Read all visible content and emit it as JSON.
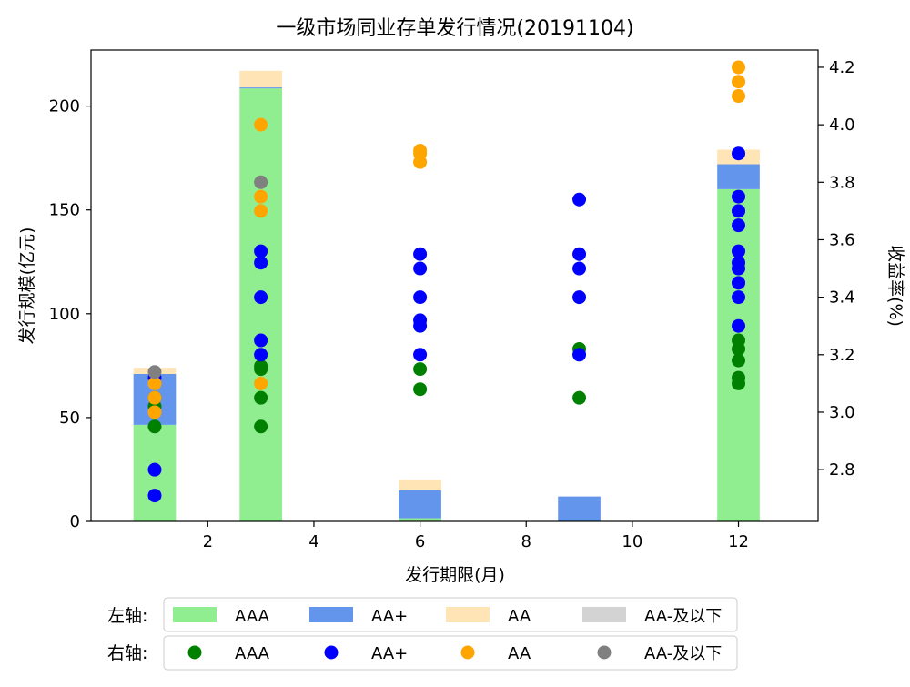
{
  "chart_data": {
    "type": "bar",
    "title": "一级市场同业存单发行情况(20191104)",
    "xlabel": "发行期限(月)",
    "ylabel_left": "发行规模(亿元)",
    "ylabel_right": "收益率(%)",
    "xlim": [
      -0.2,
      13.5
    ],
    "ylim_left": [
      0,
      227
    ],
    "ylim_right": [
      2.62,
      4.26
    ],
    "x_ticks": [
      2,
      4,
      6,
      8,
      10,
      12
    ],
    "y_ticks_left": [
      0,
      50,
      100,
      150,
      200
    ],
    "y_ticks_right": [
      2.8,
      3.0,
      3.2,
      3.4,
      3.6,
      3.8,
      4.0,
      4.2
    ],
    "grid": false,
    "bar_width": 0.8,
    "bar_series": [
      {
        "name": "AAA",
        "axis": "left",
        "color": "#90EE90",
        "x": [
          1,
          3,
          6,
          9,
          12
        ],
        "values": [
          46.5,
          208.5,
          1.5,
          0,
          160
        ]
      },
      {
        "name": "AA+",
        "axis": "left",
        "color": "#6495ED",
        "x": [
          1,
          3,
          6,
          9,
          12
        ],
        "values": [
          24.5,
          0.5,
          13.5,
          12,
          12
        ]
      },
      {
        "name": "AA",
        "axis": "left",
        "color": "#FFE4B5",
        "x": [
          1,
          3,
          6,
          9,
          12
        ],
        "values": [
          3,
          8,
          5,
          0,
          7
        ]
      },
      {
        "name": "AA-及以下",
        "axis": "left",
        "color": "#D3D3D3",
        "x": [
          1,
          3,
          6,
          9,
          12
        ],
        "values": [
          0,
          0,
          0,
          0,
          0
        ]
      }
    ],
    "scatter_series": [
      {
        "name": "AAA",
        "axis": "right",
        "color": "#008000",
        "points": [
          [
            1,
            2.95
          ],
          [
            1,
            3.02
          ],
          [
            1,
            3.05
          ],
          [
            3,
            2.95
          ],
          [
            3,
            3.05
          ],
          [
            3,
            3.15
          ],
          [
            3,
            3.16
          ],
          [
            6,
            3.08
          ],
          [
            6,
            3.15
          ],
          [
            9,
            3.05
          ],
          [
            9,
            3.22
          ],
          [
            12,
            3.1
          ],
          [
            12,
            3.12
          ],
          [
            12,
            3.18
          ],
          [
            12,
            3.22
          ],
          [
            12,
            3.25
          ]
        ]
      },
      {
        "name": "AA+",
        "axis": "right",
        "color": "#0000FF",
        "points": [
          [
            1,
            2.71
          ],
          [
            1,
            2.8
          ],
          [
            1,
            3.12
          ],
          [
            3,
            3.2
          ],
          [
            3,
            3.25
          ],
          [
            3,
            3.4
          ],
          [
            3,
            3.52
          ],
          [
            3,
            3.56
          ],
          [
            6,
            3.2
          ],
          [
            6,
            3.3
          ],
          [
            6,
            3.32
          ],
          [
            6,
            3.4
          ],
          [
            6,
            3.5
          ],
          [
            6,
            3.55
          ],
          [
            9,
            3.2
          ],
          [
            9,
            3.4
          ],
          [
            9,
            3.5
          ],
          [
            9,
            3.55
          ],
          [
            9,
            3.74
          ],
          [
            12,
            3.3
          ],
          [
            12,
            3.4
          ],
          [
            12,
            3.45
          ],
          [
            12,
            3.5
          ],
          [
            12,
            3.52
          ],
          [
            12,
            3.56
          ],
          [
            12,
            3.65
          ],
          [
            12,
            3.7
          ],
          [
            12,
            3.75
          ],
          [
            12,
            3.9
          ]
        ]
      },
      {
        "name": "AA",
        "axis": "right",
        "color": "#FFA500",
        "points": [
          [
            1,
            3.0
          ],
          [
            1,
            3.05
          ],
          [
            1,
            3.1
          ],
          [
            3,
            3.1
          ],
          [
            3,
            3.7
          ],
          [
            3,
            3.75
          ],
          [
            3,
            4.0
          ],
          [
            6,
            3.87
          ],
          [
            6,
            3.9
          ],
          [
            6,
            3.91
          ],
          [
            12,
            4.1
          ],
          [
            12,
            4.15
          ],
          [
            12,
            4.2
          ]
        ]
      },
      {
        "name": "AA-及以下",
        "axis": "right",
        "color": "#808080",
        "points": [
          [
            1,
            3.14
          ],
          [
            3,
            3.8
          ]
        ]
      }
    ],
    "legend": {
      "placement": "bottom",
      "row_left_label": "左轴:",
      "row_right_label": "右轴:"
    }
  }
}
